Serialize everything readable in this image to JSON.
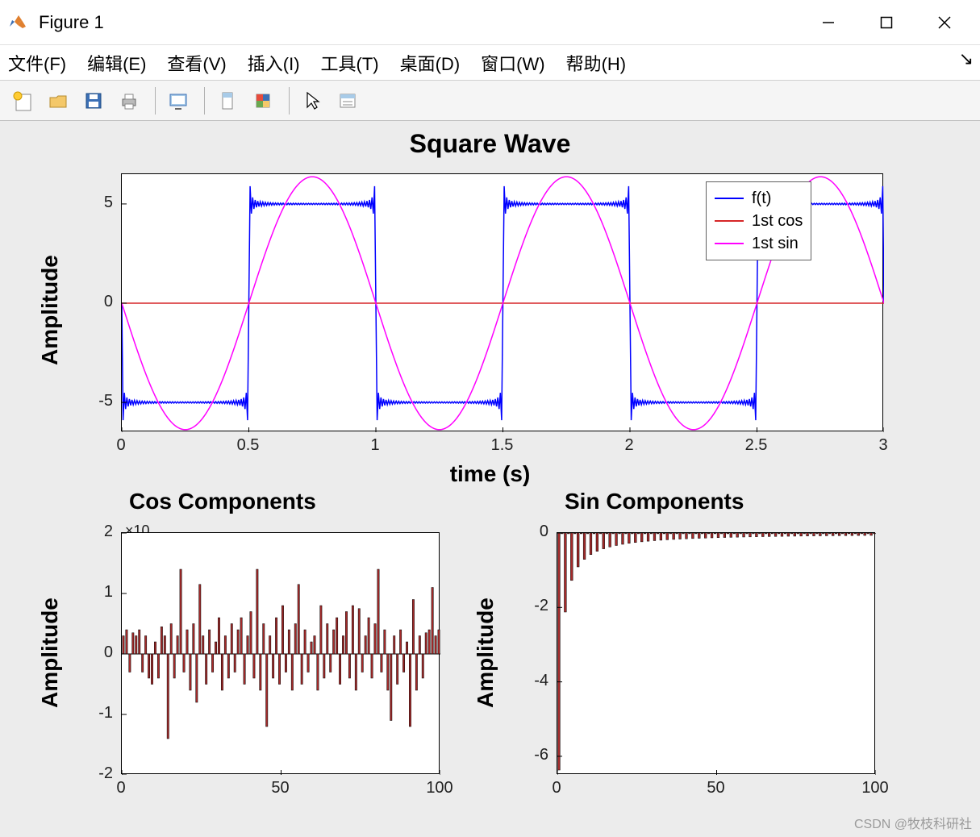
{
  "window": {
    "title": "Figure 1",
    "icon_colors": {
      "orange": "#e08030",
      "blue": "#3b6fb5",
      "green": "#6aa84f"
    }
  },
  "menubar": {
    "items": [
      "文件(F)",
      "编辑(E)",
      "查看(V)",
      "插入(I)",
      "工具(T)",
      "桌面(D)",
      "窗口(W)",
      "帮助(H)"
    ]
  },
  "toolbar": {
    "icons": [
      "new",
      "open",
      "save",
      "print",
      "sep",
      "screenshot",
      "sep",
      "datatips",
      "colorbar",
      "sep",
      "pointer",
      "link"
    ]
  },
  "figure": {
    "bg_color": "#ececec",
    "axes_bg": "#ffffff",
    "axes_border": "#000000",
    "tick_fontsize": 20,
    "title_fontsize": 32,
    "title_fontsize_sub": 28,
    "label_fontsize": 28
  },
  "plot_top": {
    "title": "Square Wave",
    "xlabel": "time (s)",
    "ylabel": "Amplitude",
    "xlim": [
      0,
      3
    ],
    "ylim": [
      -6.5,
      6.5
    ],
    "xticks": [
      0,
      0.5,
      1,
      1.5,
      2,
      2.5,
      3
    ],
    "yticks": [
      -5,
      0,
      5
    ],
    "series": {
      "square": {
        "label": "f(t)",
        "color": "#0000ff",
        "amplitude": 5,
        "period": 1.0
      },
      "cos1": {
        "label": "1st cos",
        "color": "#d62728",
        "amplitude": 0,
        "period": 1.0
      },
      "sin1": {
        "label": "1st sin",
        "color": "#ff00ff",
        "amplitude": 6.37,
        "period": 1.0
      }
    },
    "legend_pos": "top-right"
  },
  "plot_cos": {
    "title": "Cos Components",
    "ylabel": "Amplitude",
    "xlim": [
      0,
      100
    ],
    "ylim": [
      -2,
      2
    ],
    "xticks": [
      0,
      50,
      100
    ],
    "yticks": [
      -2,
      -1,
      0,
      1,
      2
    ],
    "exponent_label": "×10",
    "bar_color": "#a52a2a",
    "bar_edge": "#000000",
    "values": [
      0.3,
      0.4,
      -0.3,
      0.35,
      0.3,
      0.4,
      -0.3,
      0.3,
      -0.4,
      -0.5,
      0.2,
      -0.4,
      0.45,
      0.3,
      -1.4,
      0.5,
      -0.4,
      0.3,
      1.4,
      -0.3,
      0.4,
      -0.6,
      0.5,
      -0.8,
      1.15,
      0.3,
      -0.5,
      0.4,
      -0.3,
      0.2,
      0.6,
      -0.6,
      0.3,
      -0.4,
      0.5,
      -0.3,
      0.4,
      0.6,
      -0.5,
      0.3,
      0.7,
      -0.4,
      1.4,
      -0.6,
      0.5,
      -1.2,
      0.3,
      -0.4,
      0.6,
      -0.5,
      0.8,
      -0.3,
      0.4,
      -0.6,
      0.5,
      1.15,
      -0.5,
      0.4,
      -0.3,
      0.2,
      0.3,
      -0.6,
      0.8,
      -0.4,
      0.5,
      -0.3,
      0.4,
      0.6,
      -0.5,
      0.3,
      0.7,
      -0.4,
      0.8,
      -0.6,
      0.75,
      -0.3,
      0.3,
      0.6,
      -0.4,
      0.5,
      1.4,
      -0.3,
      0.4,
      -0.6,
      -1.1,
      0.3,
      -0.5,
      0.4,
      -0.3,
      0.2,
      -1.2,
      0.9,
      -0.6,
      0.3,
      -0.4,
      0.35,
      0.4,
      1.1,
      0.3,
      0.4
    ]
  },
  "plot_sin": {
    "title": "Sin Components",
    "ylabel": "Amplitude",
    "xlim": [
      0,
      100
    ],
    "ylim": [
      -6.5,
      0
    ],
    "xticks": [
      0,
      50,
      100
    ],
    "yticks": [
      -6,
      -4,
      -2,
      0
    ],
    "bar_color": "#a52a2a",
    "bar_edge": "#000000",
    "first_value": -6.37
  },
  "watermark": "CSDN @牧枝科研社"
}
